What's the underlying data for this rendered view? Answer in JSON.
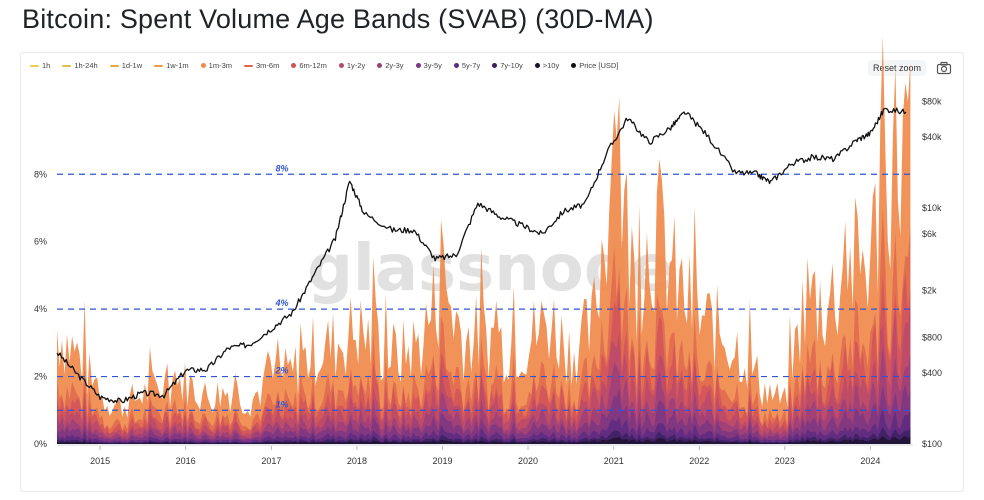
{
  "title": "Bitcoin: Spent Volume Age Bands (SVAB) (30D-MA)",
  "watermark": "glassnode",
  "reset_zoom_label": "Reset zoom",
  "camera_icon": "camera-icon",
  "chart_data": {
    "type": "area",
    "stacking": "normal",
    "legend_position": "top-left",
    "grid": false,
    "x": {
      "range": [
        "2014-07-01",
        "2024-07-01"
      ],
      "tick_labels": [
        "2015",
        "2016",
        "2017",
        "2018",
        "2019",
        "2020",
        "2021",
        "2022",
        "2023",
        "2024"
      ]
    },
    "y_left": {
      "range": [
        0,
        10.5
      ],
      "unit": "%",
      "tick_values": [
        0,
        2,
        4,
        6,
        8
      ],
      "tick_labels": [
        "0%",
        "2%",
        "4%",
        "6%",
        "8%"
      ]
    },
    "y_right": {
      "scale": "log",
      "range": [
        100,
        100000
      ],
      "unit": "USD",
      "tick_values": [
        100,
        400,
        800,
        2000,
        6000,
        10000,
        40000,
        80000
      ],
      "tick_labels": [
        "$100",
        "$400",
        "$800",
        "$2k",
        "$6k",
        "$10k",
        "$40k",
        "$80k"
      ]
    },
    "reference_lines": [
      {
        "value": 8,
        "label": "8%"
      },
      {
        "value": 4,
        "label": "4%"
      },
      {
        "value": 2,
        "label": "2%"
      },
      {
        "value": 1,
        "label": "1%"
      }
    ],
    "legend": [
      {
        "name": "1h",
        "color": "#e8d04b",
        "kind": "line"
      },
      {
        "name": "1h-24h",
        "color": "#e2bf45",
        "kind": "line"
      },
      {
        "name": "1d-1w",
        "color": "#eaa940",
        "kind": "line"
      },
      {
        "name": "1w-1m",
        "color": "#ee9a4a",
        "kind": "line"
      },
      {
        "name": "1m-3m",
        "color": "#f08a4b",
        "kind": "dot"
      },
      {
        "name": "3m-6m",
        "color": "#e0664f",
        "kind": "line"
      },
      {
        "name": "6m-12m",
        "color": "#d0515c",
        "kind": "dot"
      },
      {
        "name": "1y-2y",
        "color": "#b84a6d",
        "kind": "dot"
      },
      {
        "name": "2y-3y",
        "color": "#9a3f7a",
        "kind": "dot"
      },
      {
        "name": "3y-5y",
        "color": "#7a3583",
        "kind": "dot"
      },
      {
        "name": "5y-7y",
        "color": "#5a2b80",
        "kind": "dot"
      },
      {
        "name": "7y-10y",
        "color": "#3b1f60",
        "kind": "dot"
      },
      {
        "name": ">10y",
        "color": "#1c1230",
        "kind": "dot"
      },
      {
        "name": "Price [USD]",
        "color": "#111111",
        "kind": "dot"
      }
    ],
    "total_spent_pct": {
      "dates": [
        "2014-07",
        "2014-10",
        "2015-01",
        "2015-04",
        "2015-07",
        "2015-10",
        "2016-01",
        "2016-04",
        "2016-07",
        "2016-10",
        "2017-01",
        "2017-04",
        "2017-07",
        "2017-10",
        "2018-01",
        "2018-04",
        "2018-07",
        "2018-10",
        "2019-01",
        "2019-04",
        "2019-07",
        "2019-10",
        "2020-01",
        "2020-04",
        "2020-07",
        "2020-10",
        "2021-01",
        "2021-04",
        "2021-07",
        "2021-10",
        "2022-01",
        "2022-04",
        "2022-07",
        "2022-10",
        "2023-01",
        "2023-04",
        "2023-07",
        "2023-10",
        "2024-01",
        "2024-04",
        "2024-06"
      ],
      "values": [
        3.7,
        2.8,
        1.5,
        1.2,
        1.6,
        1.9,
        2.0,
        1.5,
        1.7,
        1.4,
        2.1,
        2.3,
        3.0,
        3.2,
        3.7,
        3.1,
        2.8,
        3.3,
        5.2,
        3.4,
        3.5,
        3.2,
        3.3,
        4.0,
        3.0,
        3.6,
        9.5,
        5.2,
        7.0,
        5.0,
        4.0,
        3.6,
        3.0,
        1.8,
        1.3,
        4.8,
        4.5,
        5.6,
        6.0,
        9.3,
        9.5
      ]
    },
    "band_shares": {
      "1m-3m": 0.45,
      "3m-6m": 0.12,
      "6m-12m": 0.1,
      "1y-2y": 0.1,
      "2y-3y": 0.08,
      "3y-5y": 0.07,
      "5y-7y": 0.04,
      "7y-10y": 0.02,
      ">10y": 0.02
    },
    "price_usd": {
      "dates": [
        "2014-07",
        "2014-10",
        "2015-01",
        "2015-04",
        "2015-07",
        "2015-10",
        "2016-01",
        "2016-04",
        "2016-07",
        "2016-10",
        "2017-01",
        "2017-04",
        "2017-07",
        "2017-10",
        "2017-12",
        "2018-02",
        "2018-06",
        "2018-09",
        "2018-12",
        "2019-03",
        "2019-06",
        "2019-09",
        "2019-12",
        "2020-03",
        "2020-06",
        "2020-09",
        "2020-12",
        "2021-03",
        "2021-06",
        "2021-09",
        "2021-11",
        "2022-02",
        "2022-06",
        "2022-09",
        "2022-11",
        "2023-02",
        "2023-05",
        "2023-08",
        "2023-11",
        "2024-01",
        "2024-03",
        "2024-06"
      ],
      "values": [
        600,
        380,
        250,
        230,
        270,
        260,
        420,
        430,
        650,
        700,
        950,
        1300,
        2700,
        5500,
        17000,
        9000,
        6500,
        6500,
        3700,
        4000,
        11000,
        8500,
        7200,
        6000,
        9400,
        10800,
        29000,
        58000,
        36000,
        48000,
        65000,
        42000,
        20000,
        19500,
        16500,
        24000,
        27000,
        26000,
        37500,
        43000,
        69000,
        65000
      ]
    }
  }
}
